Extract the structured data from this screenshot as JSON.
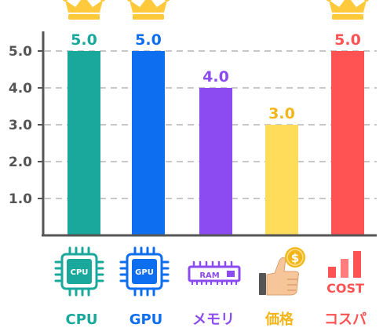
{
  "chart_data": {
    "type": "bar",
    "categories": [
      "CPU",
      "GPU",
      "メモリ",
      "価格",
      "コスパ"
    ],
    "values": [
      5.0,
      5.0,
      4.0,
      3.0,
      5.0
    ],
    "value_labels": [
      "5.0",
      "5.0",
      "4.0",
      "3.0",
      "5.0"
    ],
    "ylim": [
      0,
      5
    ],
    "yticks": [
      "1.0",
      "2.0",
      "3.0",
      "4.0",
      "5.0"
    ],
    "grid": true,
    "bar_colors": [
      "#1aa89c",
      "#0e6ef0",
      "#8b4bf0",
      "#ffdc5a",
      "#ff5252"
    ],
    "label_colors": [
      "#1aa89c",
      "#0e6ef0",
      "#8b4bf0",
      "#f2b51a",
      "#ff5252"
    ],
    "crowned": [
      true,
      true,
      false,
      false,
      true
    ],
    "crown_color": "#ffc93c",
    "icons": [
      "cpu-chip-icon",
      "gpu-chip-icon",
      "ram-module-icon",
      "thumbs-up-coin-icon",
      "cost-bars-icon"
    ],
    "icon_texts": {
      "cpu": "CPU",
      "gpu": "GPU",
      "ram": "RAM",
      "coin": "$",
      "cost": "COST"
    }
  }
}
